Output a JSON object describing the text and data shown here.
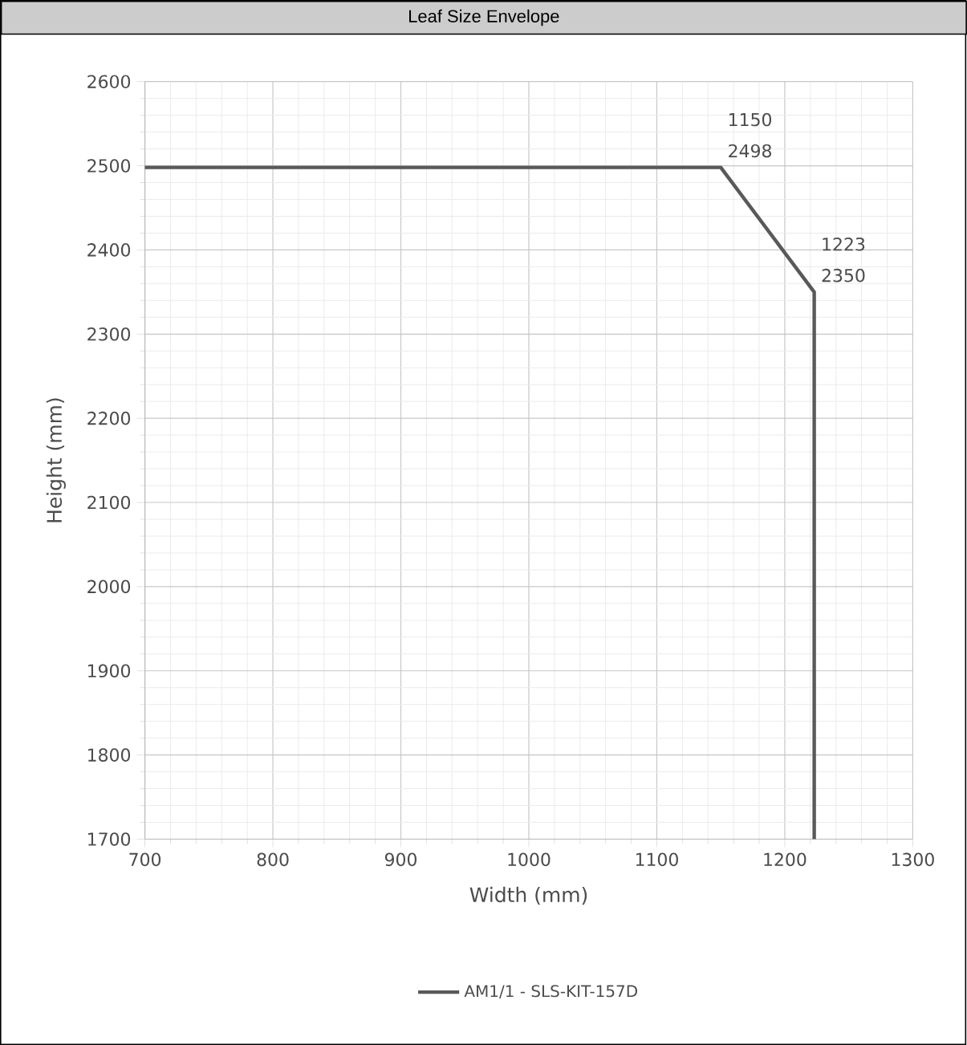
{
  "chart_data": {
    "type": "line",
    "title": "Leaf Size Envelope",
    "xlabel": "Width (mm)",
    "ylabel": "Height (mm)",
    "series": [
      {
        "name": "AM1/1 -  SLS-KIT-157D",
        "color": "#595959",
        "x": [
          700,
          1150,
          1223,
          1223
        ],
        "values": [
          2498,
          2498,
          2350,
          1700
        ]
      }
    ],
    "annotations": [
      {
        "text": "1150 2498",
        "x": 1150,
        "y": 2498
      },
      {
        "text": "1223 2350",
        "x": 1223,
        "y": 2350
      }
    ],
    "xlim": [
      700,
      1300
    ],
    "ylim": [
      1700,
      2600
    ],
    "xticks": [
      700,
      800,
      900,
      1000,
      1100,
      1200,
      1300
    ],
    "yticks": [
      1700,
      1800,
      1900,
      2000,
      2100,
      2200,
      2300,
      2400,
      2500,
      2600
    ],
    "grid": true,
    "legend": "bottom",
    "marker": "none",
    "line_style": "solid"
  }
}
